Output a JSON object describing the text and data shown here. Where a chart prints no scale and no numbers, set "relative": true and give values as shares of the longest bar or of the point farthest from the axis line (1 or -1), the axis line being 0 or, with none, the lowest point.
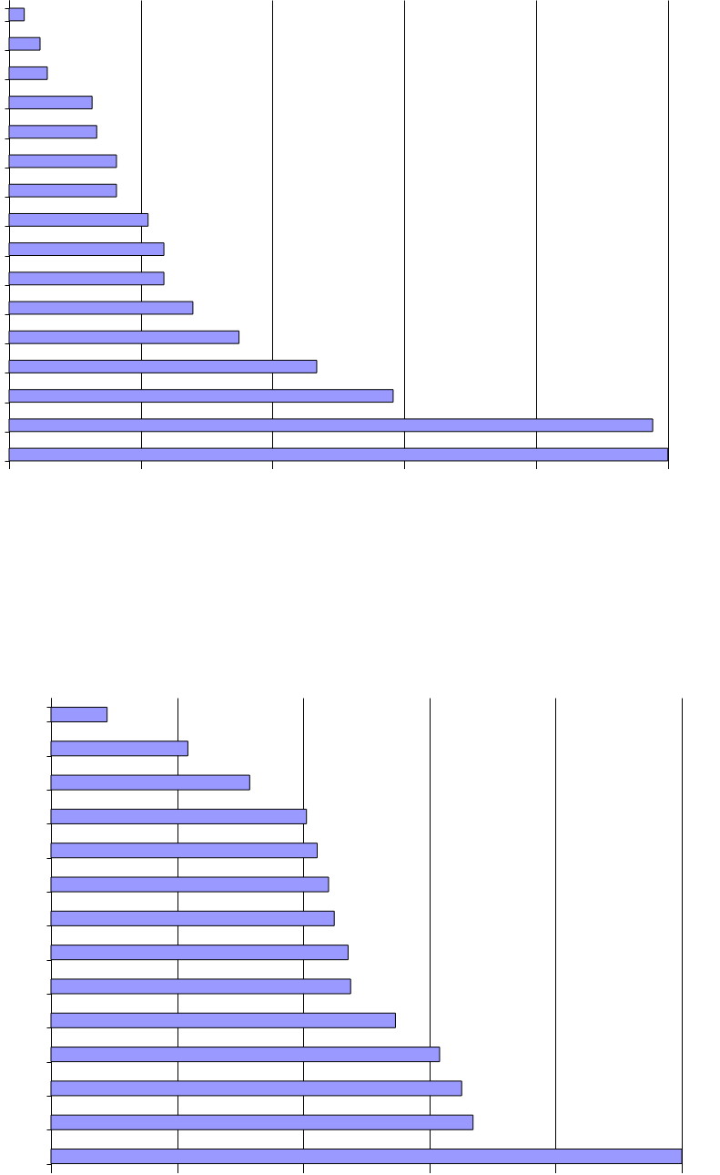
{
  "chart_data": [
    {
      "type": "bar",
      "orientation": "horizontal",
      "relative": true,
      "grid": "x",
      "color": "#9999ff",
      "categories": [
        null,
        null,
        null,
        null,
        null,
        null,
        null,
        null,
        null,
        null,
        null,
        null,
        null,
        null,
        null,
        null
      ],
      "values": [
        0.023,
        0.047,
        0.058,
        0.126,
        0.133,
        0.163,
        0.163,
        0.211,
        0.235,
        0.235,
        0.279,
        0.349,
        0.467,
        0.583,
        0.977,
        1
      ]
    },
    {
      "type": "bar",
      "orientation": "horizontal",
      "relative": true,
      "grid": "x",
      "color": "#9999ff",
      "categories": [
        null,
        null,
        null,
        null,
        null,
        null,
        null,
        null,
        null,
        null,
        null,
        null,
        null,
        null
      ],
      "values": [
        0.089,
        0.217,
        0.315,
        0.405,
        0.422,
        0.44,
        0.449,
        0.471,
        0.475,
        0.546,
        0.616,
        0.651,
        0.669,
        1
      ]
    }
  ]
}
